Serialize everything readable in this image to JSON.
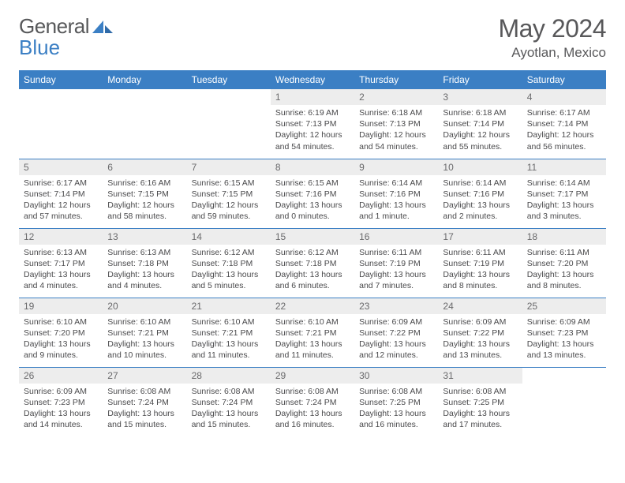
{
  "logo": {
    "text_a": "General",
    "text_b": "Blue"
  },
  "title": "May 2024",
  "location": "Ayotlan, Mexico",
  "colors": {
    "header_bg": "#3b7fc4",
    "header_fg": "#ffffff",
    "daynum_bg": "#ededed",
    "text": "#4a4a4c",
    "title": "#58585a",
    "rule": "#3b7fc4"
  },
  "days_of_week": [
    "Sunday",
    "Monday",
    "Tuesday",
    "Wednesday",
    "Thursday",
    "Friday",
    "Saturday"
  ],
  "weeks": [
    [
      null,
      null,
      null,
      {
        "n": "1",
        "sr": "6:19 AM",
        "ss": "7:13 PM",
        "dl": "12 hours and 54 minutes."
      },
      {
        "n": "2",
        "sr": "6:18 AM",
        "ss": "7:13 PM",
        "dl": "12 hours and 54 minutes."
      },
      {
        "n": "3",
        "sr": "6:18 AM",
        "ss": "7:14 PM",
        "dl": "12 hours and 55 minutes."
      },
      {
        "n": "4",
        "sr": "6:17 AM",
        "ss": "7:14 PM",
        "dl": "12 hours and 56 minutes."
      }
    ],
    [
      {
        "n": "5",
        "sr": "6:17 AM",
        "ss": "7:14 PM",
        "dl": "12 hours and 57 minutes."
      },
      {
        "n": "6",
        "sr": "6:16 AM",
        "ss": "7:15 PM",
        "dl": "12 hours and 58 minutes."
      },
      {
        "n": "7",
        "sr": "6:15 AM",
        "ss": "7:15 PM",
        "dl": "12 hours and 59 minutes."
      },
      {
        "n": "8",
        "sr": "6:15 AM",
        "ss": "7:16 PM",
        "dl": "13 hours and 0 minutes."
      },
      {
        "n": "9",
        "sr": "6:14 AM",
        "ss": "7:16 PM",
        "dl": "13 hours and 1 minute."
      },
      {
        "n": "10",
        "sr": "6:14 AM",
        "ss": "7:16 PM",
        "dl": "13 hours and 2 minutes."
      },
      {
        "n": "11",
        "sr": "6:14 AM",
        "ss": "7:17 PM",
        "dl": "13 hours and 3 minutes."
      }
    ],
    [
      {
        "n": "12",
        "sr": "6:13 AM",
        "ss": "7:17 PM",
        "dl": "13 hours and 4 minutes."
      },
      {
        "n": "13",
        "sr": "6:13 AM",
        "ss": "7:18 PM",
        "dl": "13 hours and 4 minutes."
      },
      {
        "n": "14",
        "sr": "6:12 AM",
        "ss": "7:18 PM",
        "dl": "13 hours and 5 minutes."
      },
      {
        "n": "15",
        "sr": "6:12 AM",
        "ss": "7:18 PM",
        "dl": "13 hours and 6 minutes."
      },
      {
        "n": "16",
        "sr": "6:11 AM",
        "ss": "7:19 PM",
        "dl": "13 hours and 7 minutes."
      },
      {
        "n": "17",
        "sr": "6:11 AM",
        "ss": "7:19 PM",
        "dl": "13 hours and 8 minutes."
      },
      {
        "n": "18",
        "sr": "6:11 AM",
        "ss": "7:20 PM",
        "dl": "13 hours and 8 minutes."
      }
    ],
    [
      {
        "n": "19",
        "sr": "6:10 AM",
        "ss": "7:20 PM",
        "dl": "13 hours and 9 minutes."
      },
      {
        "n": "20",
        "sr": "6:10 AM",
        "ss": "7:21 PM",
        "dl": "13 hours and 10 minutes."
      },
      {
        "n": "21",
        "sr": "6:10 AM",
        "ss": "7:21 PM",
        "dl": "13 hours and 11 minutes."
      },
      {
        "n": "22",
        "sr": "6:10 AM",
        "ss": "7:21 PM",
        "dl": "13 hours and 11 minutes."
      },
      {
        "n": "23",
        "sr": "6:09 AM",
        "ss": "7:22 PM",
        "dl": "13 hours and 12 minutes."
      },
      {
        "n": "24",
        "sr": "6:09 AM",
        "ss": "7:22 PM",
        "dl": "13 hours and 13 minutes."
      },
      {
        "n": "25",
        "sr": "6:09 AM",
        "ss": "7:23 PM",
        "dl": "13 hours and 13 minutes."
      }
    ],
    [
      {
        "n": "26",
        "sr": "6:09 AM",
        "ss": "7:23 PM",
        "dl": "13 hours and 14 minutes."
      },
      {
        "n": "27",
        "sr": "6:08 AM",
        "ss": "7:24 PM",
        "dl": "13 hours and 15 minutes."
      },
      {
        "n": "28",
        "sr": "6:08 AM",
        "ss": "7:24 PM",
        "dl": "13 hours and 15 minutes."
      },
      {
        "n": "29",
        "sr": "6:08 AM",
        "ss": "7:24 PM",
        "dl": "13 hours and 16 minutes."
      },
      {
        "n": "30",
        "sr": "6:08 AM",
        "ss": "7:25 PM",
        "dl": "13 hours and 16 minutes."
      },
      {
        "n": "31",
        "sr": "6:08 AM",
        "ss": "7:25 PM",
        "dl": "13 hours and 17 minutes."
      },
      null
    ]
  ],
  "labels": {
    "sunrise": "Sunrise:",
    "sunset": "Sunset:",
    "daylight": "Daylight:"
  }
}
